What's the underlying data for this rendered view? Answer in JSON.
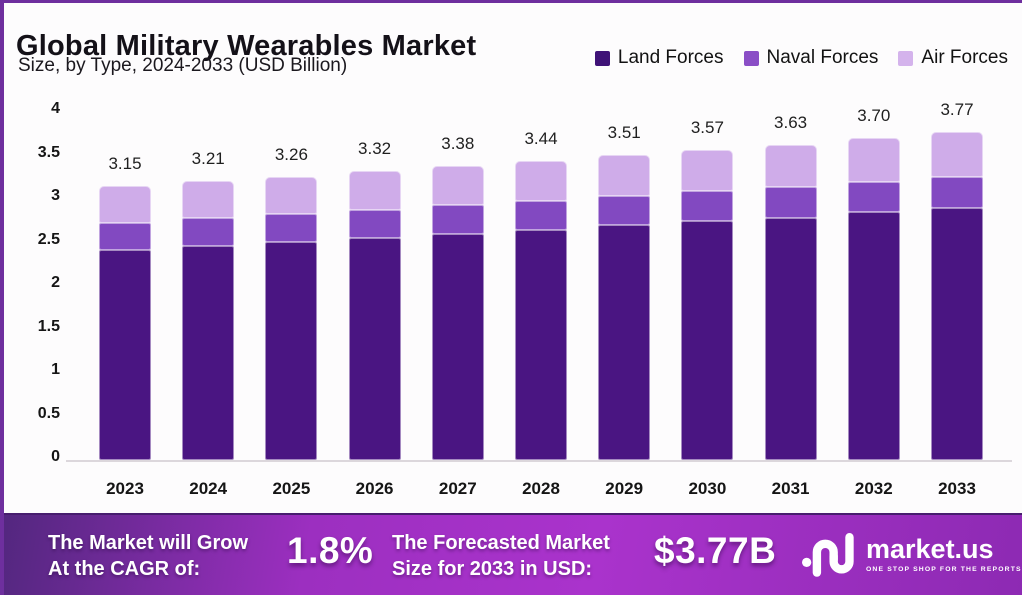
{
  "header": {
    "title": "Global Military Wearables Market",
    "subtitle": "Size, by Type, 2024-2033 (USD Billion)"
  },
  "legend": {
    "items": [
      {
        "label": "Land Forces",
        "color": "#3f1277"
      },
      {
        "label": "Naval Forces",
        "color": "#8a4ec6"
      },
      {
        "label": "Air Forces",
        "color": "#d4b3ec"
      }
    ]
  },
  "chart_data": {
    "type": "bar",
    "stacked": true,
    "title": "Global Military Wearables Market Size, by Type, 2024-2033 (USD Billion)",
    "xlabel": "",
    "ylabel": "",
    "ylim": [
      0,
      4
    ],
    "grid": false,
    "legend_position": "top-right",
    "categories": [
      "2023",
      "2024",
      "2025",
      "2026",
      "2027",
      "2028",
      "2029",
      "2030",
      "2031",
      "2032",
      "2033"
    ],
    "yticks": [
      "4",
      "3.5",
      "3",
      "2.5",
      "2",
      "1.5",
      "1",
      "0.5",
      "0"
    ],
    "series": [
      {
        "name": "Land Forces",
        "color": "#4a1582",
        "values": [
          2.42,
          2.46,
          2.51,
          2.55,
          2.6,
          2.65,
          2.7,
          2.75,
          2.79,
          2.85,
          2.9
        ]
      },
      {
        "name": "Naval Forces",
        "color": "#8249c1",
        "values": [
          0.31,
          0.32,
          0.32,
          0.33,
          0.33,
          0.33,
          0.34,
          0.34,
          0.35,
          0.35,
          0.36
        ]
      },
      {
        "name": "Air Forces",
        "color": "#cface9",
        "values": [
          0.42,
          0.43,
          0.43,
          0.44,
          0.45,
          0.46,
          0.47,
          0.48,
          0.49,
          0.5,
          0.51
        ]
      }
    ],
    "totals": [
      "3.15",
      "3.21",
      "3.26",
      "3.32",
      "3.38",
      "3.44",
      "3.51",
      "3.57",
      "3.63",
      "3.70",
      "3.77"
    ]
  },
  "footer": {
    "cagr_label_line1": "The Market will Grow",
    "cagr_label_line2": "At the CAGR of:",
    "cagr_value": "1.8%",
    "forecast_label_line1": "The Forecasted Market",
    "forecast_label_line2": "Size for 2033 in USD:",
    "forecast_value": "$3.77B",
    "brand_name": "market.us",
    "brand_tagline": "ONE STOP SHOP FOR THE REPORTS"
  },
  "colors": {
    "page_border": "#6e2f9e",
    "banner_dark": "#53277f",
    "banner_bright": "#aa33cc",
    "axis_line": "#dcd7dc"
  }
}
